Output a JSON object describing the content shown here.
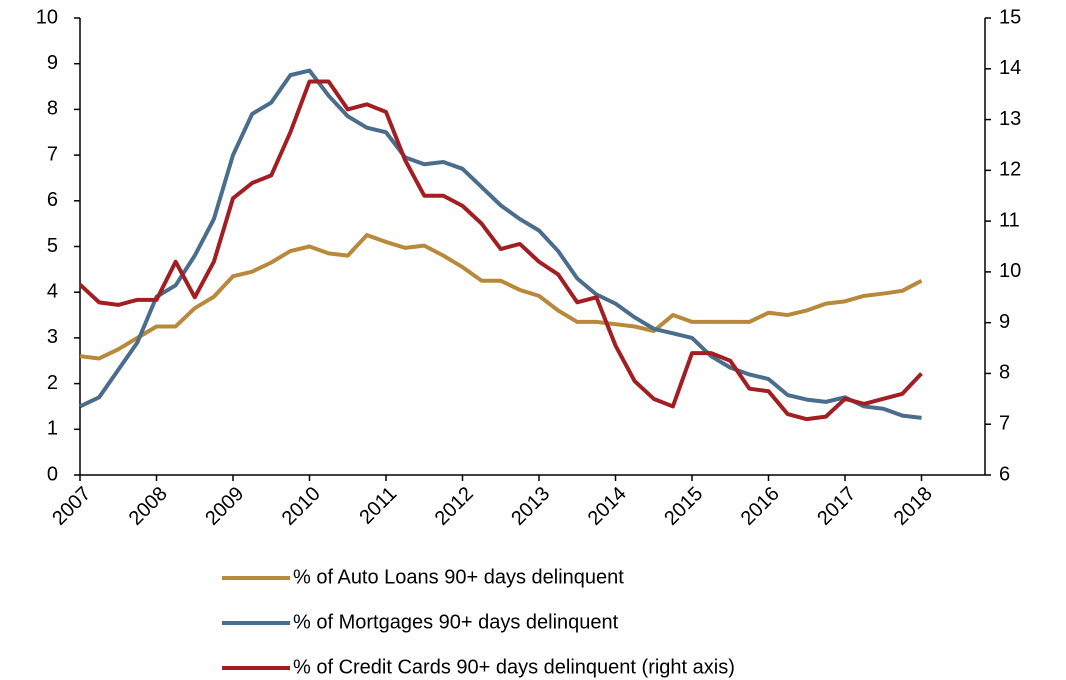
{
  "chart_data": {
    "type": "line",
    "x": [
      2007,
      2007.25,
      2007.5,
      2007.75,
      2008,
      2008.25,
      2008.5,
      2008.75,
      2009,
      2009.25,
      2009.5,
      2009.75,
      2010,
      2010.25,
      2010.5,
      2010.75,
      2011,
      2011.25,
      2011.5,
      2011.75,
      2012,
      2012.25,
      2012.5,
      2012.75,
      2013,
      2013.25,
      2013.5,
      2013.75,
      2014,
      2014.25,
      2014.5,
      2014.75,
      2015,
      2015.25,
      2015.5,
      2015.75,
      2016,
      2016.25,
      2016.5,
      2016.75,
      2017,
      2017.25,
      2017.5,
      2017.75,
      2018
    ],
    "series": [
      {
        "name": "% of Auto Loans 90+ days delinquent",
        "color": "#b8893a",
        "values": [
          2.6,
          2.55,
          2.75,
          3.0,
          3.25,
          3.25,
          3.65,
          3.9,
          4.35,
          4.45,
          4.65,
          4.9,
          5.0,
          4.85,
          4.8,
          5.25,
          5.1,
          4.97,
          5.02,
          4.8,
          4.55,
          4.25,
          4.25,
          4.05,
          3.92,
          3.6,
          3.35,
          3.35,
          3.3,
          3.25,
          3.15,
          3.5,
          3.35,
          3.35,
          3.35,
          3.35,
          3.55,
          3.5,
          3.6,
          3.75,
          3.8,
          3.92,
          3.97,
          4.03,
          4.25
        ]
      },
      {
        "name": "% of Mortgages 90+ days delinquent",
        "color": "#4a6d8c",
        "values": [
          1.5,
          1.7,
          2.3,
          2.9,
          3.9,
          4.15,
          4.8,
          5.6,
          7.0,
          7.9,
          8.15,
          8.75,
          8.85,
          8.3,
          7.85,
          7.6,
          7.5,
          6.95,
          6.8,
          6.85,
          6.7,
          6.3,
          5.9,
          5.6,
          5.35,
          4.9,
          4.3,
          3.95,
          3.75,
          3.45,
          3.2,
          3.1,
          3.0,
          2.6,
          2.35,
          2.2,
          2.1,
          1.75,
          1.65,
          1.6,
          1.7,
          1.5,
          1.45,
          1.3,
          1.25
        ]
      },
      {
        "name": "% of Credit Cards 90+ days delinquent (right axis)",
        "color": "#a31e22",
        "axis": "y2",
        "values": [
          9.75,
          9.4,
          9.35,
          9.45,
          9.45,
          10.2,
          9.5,
          10.2,
          11.45,
          11.75,
          11.9,
          12.75,
          13.75,
          13.75,
          13.2,
          13.3,
          13.15,
          12.2,
          11.5,
          11.5,
          11.3,
          10.95,
          10.45,
          10.55,
          10.2,
          9.95,
          9.4,
          9.5,
          8.55,
          7.85,
          7.5,
          7.35,
          8.4,
          8.4,
          8.25,
          7.7,
          7.65,
          7.2,
          7.1,
          7.15,
          7.5,
          7.4,
          7.5,
          7.6,
          8.0
        ]
      }
    ],
    "xlim": [
      2007,
      2018.83
    ],
    "xticks": [
      2007,
      2008,
      2009,
      2010,
      2011,
      2012,
      2013,
      2014,
      2015,
      2016,
      2017,
      2018
    ],
    "ylim": [
      0,
      10
    ],
    "yticks": [
      0,
      1,
      2,
      3,
      4,
      5,
      6,
      7,
      8,
      9,
      10
    ],
    "y2lim": [
      6,
      15
    ],
    "y2ticks": [
      6,
      7,
      8,
      9,
      10,
      11,
      12,
      13,
      14,
      15
    ],
    "grid": false,
    "legend": "bottom"
  }
}
